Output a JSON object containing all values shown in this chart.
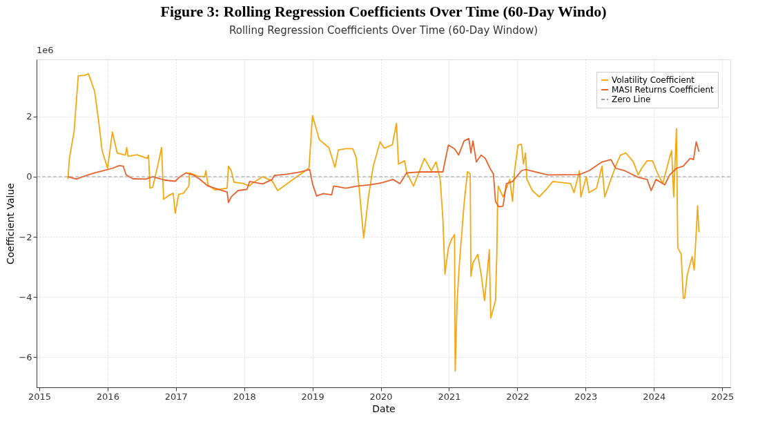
{
  "chart_data": {
    "type": "line",
    "title": "Figure 3: Rolling Regression Coefficients Over Time (60-Day Windo)",
    "subtitle": "Rolling Regression Coefficients Over Time (60-Day Window)",
    "xlabel": "Date",
    "ylabel": "Coefficient Value",
    "annotations": [
      "1e6"
    ],
    "xlim": [
      2014.96,
      2025.12
    ],
    "ylim": [
      -7.0,
      3.9
    ],
    "xticks": [
      2015,
      2016,
      2017,
      2018,
      2019,
      2020,
      2021,
      2022,
      2023,
      2024,
      2025
    ],
    "yticks": [
      {
        "value": -6,
        "label": "−6"
      },
      {
        "value": -4,
        "label": "−4"
      },
      {
        "value": -2,
        "label": "−2"
      },
      0,
      2
    ],
    "grid": true,
    "legend": "top right",
    "line_style": "solid",
    "ref_lines": [
      {
        "axis": "y",
        "value": 0,
        "label": "Zero Line",
        "color": "#999999",
        "line_style": "dashed"
      }
    ],
    "series": [
      {
        "name": "Volatility Coefficient",
        "color": "#f5a70f",
        "x": [
          2015.42,
          2015.44,
          2015.51,
          2015.57,
          2015.66,
          2015.72,
          2015.81,
          2015.87,
          2015.92,
          2016.0,
          2016.07,
          2016.14,
          2016.26,
          2016.28,
          2016.3,
          2016.43,
          2016.58,
          2016.6,
          2016.62,
          2016.66,
          2016.74,
          2016.79,
          2016.82,
          2016.89,
          2016.96,
          2016.99,
          2017.04,
          2017.11,
          2017.19,
          2017.2,
          2017.32,
          2017.42,
          2017.44,
          2017.47,
          2017.57,
          2017.75,
          2017.77,
          2017.81,
          2017.85,
          2017.98,
          2018.08,
          2018.11,
          2018.27,
          2018.31,
          2018.41,
          2018.49,
          2018.77,
          2018.9,
          2018.95,
          2019.0,
          2019.1,
          2019.24,
          2019.33,
          2019.38,
          2019.49,
          2019.59,
          2019.64,
          2019.69,
          2019.75,
          2019.82,
          2019.89,
          2019.99,
          2020.05,
          2020.17,
          2020.23,
          2020.26,
          2020.35,
          2020.38,
          2020.48,
          2020.64,
          2020.74,
          2020.81,
          2020.87,
          2020.91,
          2020.94,
          2020.99,
          2021.04,
          2021.08,
          2021.09,
          2021.12,
          2021.15,
          2021.22,
          2021.27,
          2021.31,
          2021.32,
          2021.35,
          2021.42,
          2021.47,
          2021.52,
          2021.59,
          2021.61,
          2021.68,
          2021.7,
          2021.71,
          2021.72,
          2021.79,
          2021.89,
          2021.93,
          2021.96,
          2022.01,
          2022.06,
          2022.09,
          2022.12,
          2022.14,
          2022.22,
          2022.32,
          2022.44,
          2022.52,
          2022.78,
          2022.83,
          2022.91,
          2022.93,
          2023.01,
          2023.05,
          2023.16,
          2023.24,
          2023.28,
          2023.37,
          2023.44,
          2023.51,
          2023.59,
          2023.7,
          2023.77,
          2023.82,
          2023.9,
          2023.98,
          2024.05,
          2024.13,
          2024.23,
          2024.26,
          2024.29,
          2024.33,
          2024.35,
          2024.4,
          2024.43,
          2024.45,
          2024.49,
          2024.56,
          2024.59,
          2024.64,
          2024.66
        ],
        "values": [
          -0.08,
          0.6,
          1.52,
          3.35,
          3.37,
          3.42,
          2.84,
          1.82,
          0.86,
          0.28,
          1.49,
          0.79,
          0.72,
          0.97,
          0.68,
          0.73,
          0.61,
          0.72,
          -0.38,
          -0.35,
          0.42,
          0.97,
          -0.75,
          -0.63,
          -0.55,
          -1.22,
          -0.59,
          -0.55,
          -0.31,
          0.13,
          0.02,
          0.0,
          0.2,
          -0.27,
          -0.44,
          -0.38,
          0.35,
          0.2,
          -0.18,
          -0.22,
          -0.31,
          -0.23,
          0.0,
          -0.04,
          -0.14,
          -0.46,
          0.0,
          0.2,
          0.3,
          2.03,
          1.23,
          0.97,
          0.31,
          0.89,
          0.93,
          0.93,
          0.64,
          -0.53,
          -2.04,
          -0.67,
          0.35,
          1.16,
          0.95,
          1.06,
          1.78,
          0.42,
          0.53,
          0.13,
          -0.31,
          0.61,
          0.2,
          0.49,
          -0.09,
          -1.41,
          -3.24,
          -2.36,
          -2.07,
          -1.92,
          -6.46,
          -4.04,
          -2.95,
          -0.9,
          0.17,
          0.1,
          -3.31,
          -2.87,
          -2.58,
          -3.24,
          -4.12,
          -2.43,
          -4.7,
          -4.12,
          -2.58,
          -0.9,
          -0.31,
          -0.67,
          -0.09,
          -0.82,
          0.2,
          1.05,
          1.08,
          0.42,
          0.79,
          -0.09,
          -0.46,
          -0.67,
          -0.38,
          -0.16,
          -0.23,
          -0.53,
          0.2,
          -0.67,
          0.0,
          -0.53,
          -0.38,
          0.35,
          -0.67,
          -0.09,
          0.35,
          0.72,
          0.79,
          0.49,
          0.06,
          0.28,
          0.53,
          0.53,
          0.13,
          -0.23,
          0.64,
          0.86,
          -0.67,
          1.6,
          -2.36,
          -2.58,
          -4.04,
          -4.04,
          -3.24,
          -2.65,
          -3.1,
          -0.97,
          -1.85
        ]
      },
      {
        "name": "MASI Returns Coefficient",
        "color": "#e8602c",
        "x": [
          2015.42,
          2015.54,
          2015.66,
          2015.81,
          2015.94,
          2016.07,
          2016.17,
          2016.23,
          2016.27,
          2016.37,
          2016.56,
          2016.66,
          2016.83,
          2016.99,
          2017.06,
          2017.15,
          2017.25,
          2017.35,
          2017.47,
          2017.65,
          2017.75,
          2017.77,
          2017.81,
          2017.91,
          2018.04,
          2018.08,
          2018.27,
          2018.41,
          2018.44,
          2018.64,
          2018.83,
          2018.96,
          2019.0,
          2019.06,
          2019.16,
          2019.28,
          2019.31,
          2019.49,
          2019.66,
          2019.85,
          2020.02,
          2020.18,
          2020.28,
          2020.38,
          2020.58,
          2020.91,
          2020.99,
          2021.08,
          2021.14,
          2021.22,
          2021.29,
          2021.32,
          2021.35,
          2021.4,
          2021.47,
          2021.53,
          2021.6,
          2021.65,
          2021.68,
          2021.73,
          2021.79,
          2021.84,
          2021.93,
          2022.06,
          2022.12,
          2022.26,
          2022.45,
          2022.91,
          2023.05,
          2023.24,
          2023.37,
          2023.44,
          2023.57,
          2023.77,
          2023.9,
          2023.96,
          2024.03,
          2024.16,
          2024.23,
          2024.33,
          2024.43,
          2024.53,
          2024.58,
          2024.62,
          2024.66
        ],
        "values": [
          0.0,
          -0.08,
          0.02,
          0.13,
          0.2,
          0.28,
          0.37,
          0.35,
          0.06,
          -0.07,
          -0.08,
          0.0,
          -0.11,
          -0.15,
          0.0,
          0.13,
          0.06,
          -0.08,
          -0.31,
          -0.44,
          -0.51,
          -0.86,
          -0.67,
          -0.46,
          -0.42,
          -0.16,
          -0.24,
          -0.09,
          0.04,
          0.09,
          0.16,
          0.24,
          -0.23,
          -0.64,
          -0.56,
          -0.6,
          -0.31,
          -0.38,
          -0.31,
          -0.27,
          -0.2,
          -0.09,
          -0.23,
          0.13,
          0.16,
          0.16,
          1.05,
          0.93,
          0.72,
          1.19,
          1.27,
          0.79,
          1.19,
          0.49,
          0.72,
          0.61,
          0.28,
          0.09,
          -0.82,
          -1.0,
          -0.98,
          -0.23,
          -0.16,
          0.2,
          0.24,
          0.16,
          0.06,
          0.07,
          0.2,
          0.49,
          0.57,
          0.28,
          0.2,
          -0.02,
          -0.09,
          -0.46,
          -0.09,
          -0.27,
          0.06,
          0.28,
          0.35,
          0.61,
          0.57,
          1.16,
          0.83
        ]
      }
    ]
  }
}
